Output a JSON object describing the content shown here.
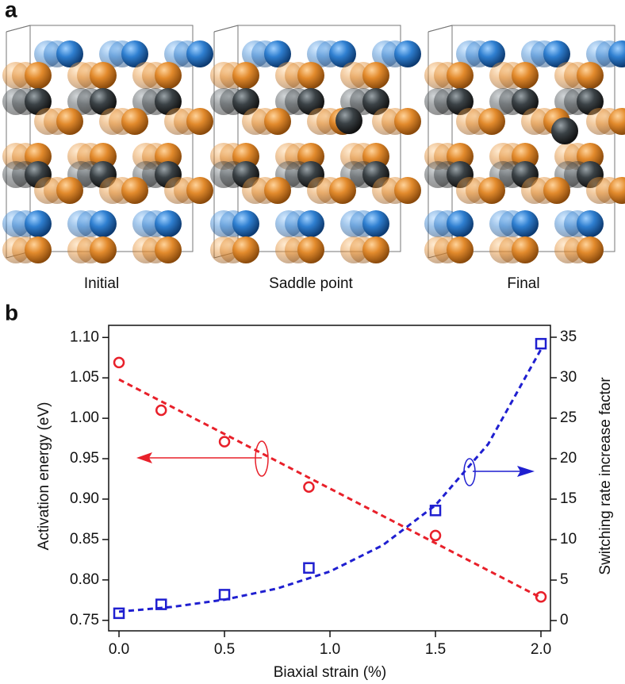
{
  "panel_labels": [
    "a",
    "b"
  ],
  "structure_labels": [
    "Initial",
    "Saddle point",
    "Final"
  ],
  "chart_data": {
    "type": "scatter",
    "xlabel": "Biaxial strain (%)",
    "ylabel": "Activation energy (eV)",
    "y2label": "Switching rate increase factor",
    "x": [
      0,
      0.2,
      0.5,
      0.9,
      1.5,
      2.0
    ],
    "series": [
      {
        "color": "#e8202a",
        "marker": "circle",
        "values": [
          1.069,
          1.01,
          0.971,
          0.915,
          0.855,
          0.779
        ]
      },
      {
        "color": "#1f1fd0",
        "marker": "square",
        "axis": "y2",
        "values": [
          0.9,
          2.0,
          3.2,
          6.5,
          13.6,
          34.2
        ]
      }
    ],
    "fit_lines": [
      {
        "color": "#e8202a",
        "x": [
          0,
          2.0
        ],
        "values": [
          1.048,
          0.778
        ]
      },
      {
        "color": "#1f1fd0",
        "axis": "y2",
        "x": [
          0,
          0.25,
          0.5,
          0.75,
          1.0,
          1.25,
          1.5,
          1.75,
          2.0
        ],
        "values": [
          1.1,
          1.68,
          2.58,
          3.96,
          6.06,
          9.3,
          14.25,
          21.8,
          33.5
        ]
      }
    ],
    "xlim": [
      -0.049,
      2.045
    ],
    "xticks": [
      {
        "value": 0,
        "label": "0.0"
      },
      0.5,
      {
        "value": 1.0,
        "label": "1.0"
      },
      1.5,
      {
        "value": 2.0,
        "label": "2.0"
      }
    ],
    "ylim": [
      0.737,
      1.115
    ],
    "yticks": [
      0.75,
      {
        "value": 0.8,
        "label": "0.80"
      },
      0.85,
      {
        "value": 0.9,
        "label": "0.90"
      },
      0.95,
      {
        "value": 1.0,
        "label": "1.00"
      },
      1.05,
      {
        "value": 1.1,
        "label": "1.10"
      }
    ],
    "y2lim": [
      -1.27,
      36.47
    ],
    "y2ticks": [
      0,
      5,
      10,
      15,
      20,
      25,
      30,
      35
    ],
    "grid": false
  }
}
